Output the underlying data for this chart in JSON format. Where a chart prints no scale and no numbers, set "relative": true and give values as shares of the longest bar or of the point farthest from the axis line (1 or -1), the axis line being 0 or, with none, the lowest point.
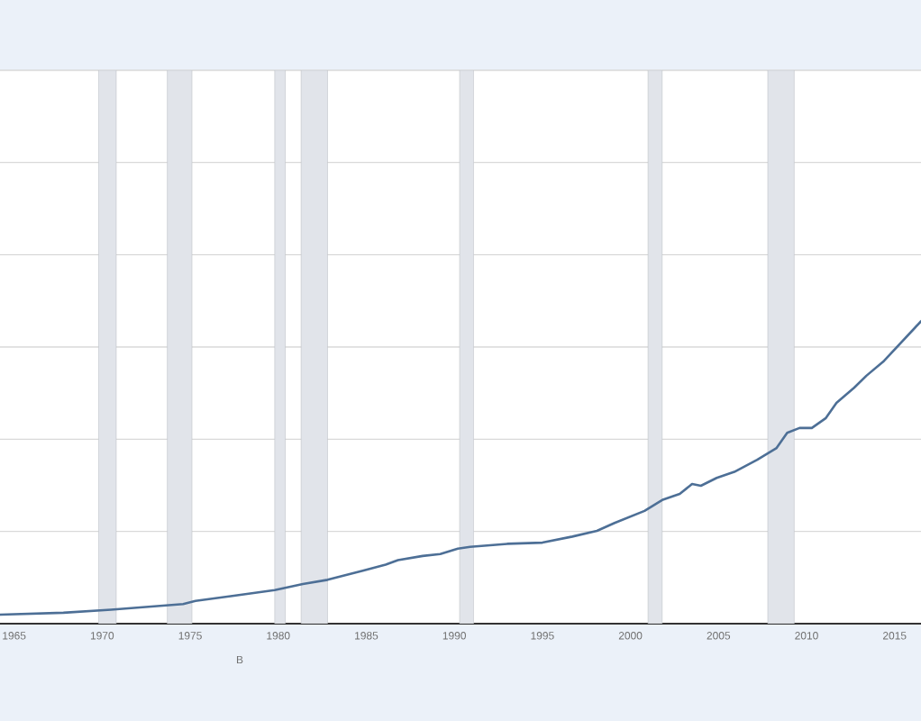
{
  "chart_data": {
    "type": "line",
    "relative": true,
    "x": [
      1964.2,
      1967.8,
      1970.5,
      1974.6,
      1975.3,
      1977.3,
      1979.8,
      1981.4,
      1982.8,
      1984.8,
      1986.1,
      1986.8,
      1988.2,
      1989.2,
      1990.2,
      1990.9,
      1993.0,
      1995.0,
      1996.7,
      1998.1,
      1999.1,
      2000.8,
      2001.8,
      2002.8,
      2003.5,
      2004.0,
      2004.9,
      2005.9,
      2007.2,
      2008.3,
      2008.9,
      2009.6,
      2010.3,
      2011.1,
      2011.7,
      2012.7,
      2013.4,
      2014.4,
      2016.5
    ],
    "values": [
      0.03,
      0.036,
      0.046,
      0.065,
      0.075,
      0.091,
      0.111,
      0.131,
      0.145,
      0.175,
      0.195,
      0.21,
      0.224,
      0.23,
      0.248,
      0.254,
      0.264,
      0.268,
      0.288,
      0.307,
      0.333,
      0.373,
      0.409,
      0.429,
      0.462,
      0.456,
      0.482,
      0.502,
      0.542,
      0.581,
      0.631,
      0.647,
      0.647,
      0.68,
      0.73,
      0.78,
      0.82,
      0.869,
      1.0
    ],
    "color": "#4d6f96",
    "xlim": [
      1964.2,
      2016.5
    ],
    "xticks": [
      1965,
      1970,
      1975,
      1980,
      1985,
      1990,
      1995,
      2000,
      2005,
      2010,
      2015
    ],
    "tick_labels": "x",
    "grid": "y",
    "bands": [
      {
        "axis": "x",
        "from": 1969.8,
        "to": 1970.8,
        "color": "#e1e4ea"
      },
      {
        "axis": "x",
        "from": 1973.7,
        "to": 1975.1,
        "color": "#e1e4ea"
      },
      {
        "axis": "x",
        "from": 1979.8,
        "to": 1980.4,
        "color": "#e1e4ea"
      },
      {
        "axis": "x",
        "from": 1981.3,
        "to": 1982.8,
        "color": "#e1e4ea"
      },
      {
        "axis": "x",
        "from": 1990.3,
        "to": 1991.1,
        "color": "#e1e4ea"
      },
      {
        "axis": "x",
        "from": 2001.0,
        "to": 2001.8,
        "color": "#e1e4ea"
      },
      {
        "axis": "x",
        "from": 2007.8,
        "to": 2009.3,
        "color": "#e1e4ea"
      }
    ],
    "annotations": [
      "B"
    ]
  }
}
